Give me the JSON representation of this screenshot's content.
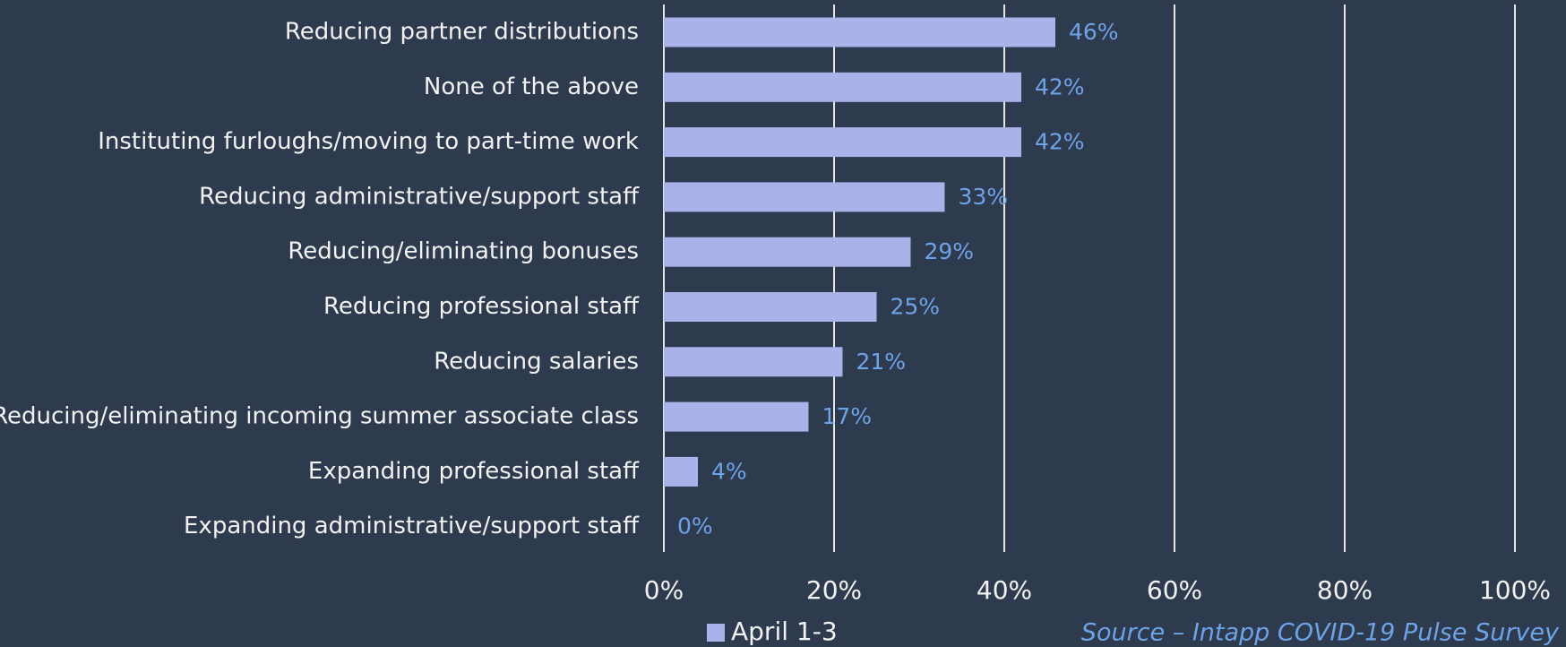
{
  "chart_data": {
    "type": "bar",
    "orientation": "horizontal",
    "categories": [
      "Reducing partner distributions",
      "None of the above",
      "Instituting furloughs/moving to part-time work",
      "Reducing administrative/support staff",
      "Reducing/eliminating bonuses",
      "Reducing professional staff",
      "Reducing salaries",
      "Reducing/eliminating incoming summer associate class",
      "Expanding professional staff",
      "Expanding administrative/support staff"
    ],
    "series": [
      {
        "name": "April 1-3",
        "color": "#a9b3ea",
        "values": [
          46,
          42,
          42,
          33,
          29,
          25,
          21,
          17,
          4,
          0
        ],
        "value_labels": [
          "46%",
          "42%",
          "42%",
          "33%",
          "29%",
          "25%",
          "21%",
          "17%",
          "4%",
          "0%"
        ]
      }
    ],
    "xlim": [
      0,
      100
    ],
    "xticks": [
      {
        "value": 0,
        "label": "0%"
      },
      {
        "value": 20,
        "label": "20%"
      },
      {
        "value": 40,
        "label": "40%"
      },
      {
        "value": 60,
        "label": "60%"
      },
      {
        "value": 80,
        "label": "80%"
      },
      {
        "value": 100,
        "label": "100%"
      }
    ],
    "grid": true,
    "legend": "bottom",
    "annotation": "Source – Intapp COVID-19 Pulse Survey"
  }
}
